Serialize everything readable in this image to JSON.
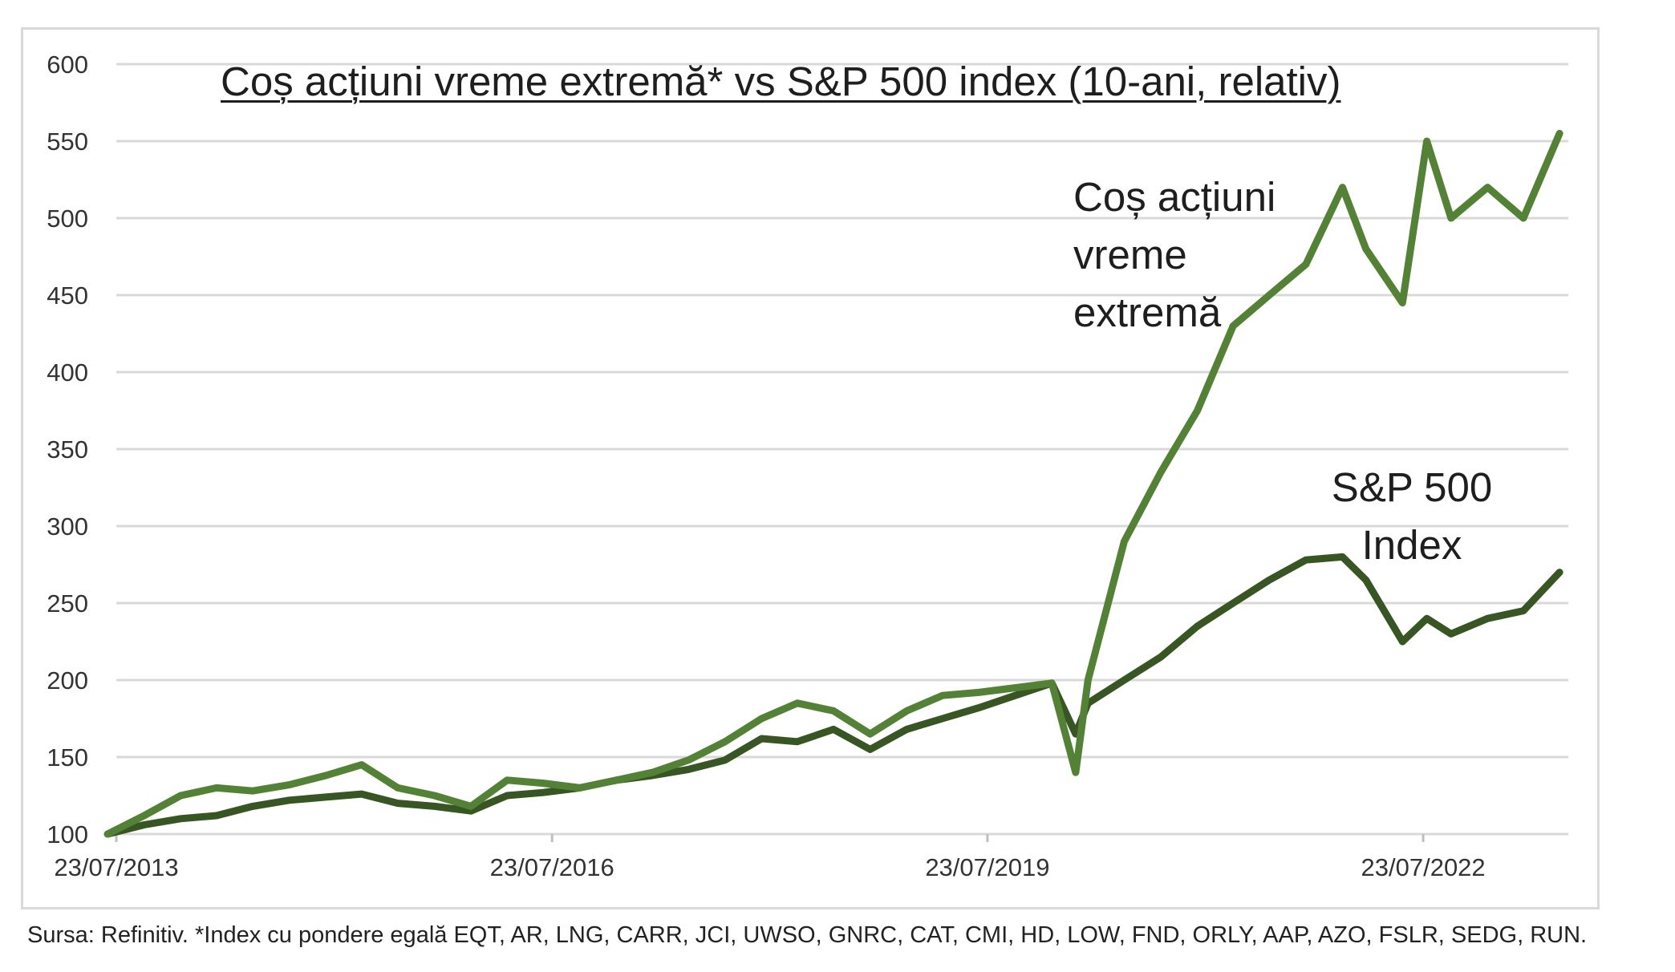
{
  "chart_data": {
    "type": "line",
    "title": "Coș acțiuni vreme extremă* vs S&P 500 index (10-ani, relativ)",
    "xlabel": "",
    "ylabel": "",
    "ylim": [
      100,
      600
    ],
    "yticks": [
      "100",
      "150",
      "200",
      "250",
      "300",
      "350",
      "400",
      "450",
      "500",
      "550",
      "600"
    ],
    "xlim": [
      "2013-07-23",
      "2023-07-23"
    ],
    "xticks": [
      "23/07/2013",
      "23/07/2016",
      "23/07/2019",
      "23/07/2022"
    ],
    "grid": true,
    "legend": "none (inline labels)",
    "series_labels": {
      "basket": "Coș acțiuni vreme extremă",
      "sp500": "S&P 500 Index"
    },
    "series": [
      {
        "key": "basket",
        "color": "#538135",
        "x": [
          "2013-07",
          "2013-10",
          "2014-01",
          "2014-04",
          "2014-07",
          "2014-10",
          "2015-01",
          "2015-04",
          "2015-07",
          "2015-10",
          "2016-01",
          "2016-04",
          "2016-07",
          "2016-10",
          "2017-01",
          "2017-04",
          "2017-07",
          "2017-10",
          "2018-01",
          "2018-04",
          "2018-07",
          "2018-10",
          "2019-01",
          "2019-04",
          "2019-07",
          "2019-10",
          "2020-01",
          "2020-03",
          "2020-04",
          "2020-07",
          "2020-10",
          "2021-01",
          "2021-04",
          "2021-07",
          "2021-10",
          "2022-01",
          "2022-03",
          "2022-06",
          "2022-08",
          "2022-10",
          "2023-01",
          "2023-04",
          "2023-07"
        ],
        "values": [
          100,
          112,
          125,
          130,
          128,
          132,
          138,
          145,
          130,
          125,
          118,
          135,
          133,
          130,
          135,
          140,
          148,
          160,
          175,
          185,
          180,
          165,
          180,
          190,
          192,
          195,
          198,
          140,
          200,
          290,
          335,
          375,
          430,
          450,
          470,
          520,
          480,
          445,
          550,
          500,
          520,
          500,
          555
        ]
      },
      {
        "key": "sp500",
        "color": "#375623",
        "x": [
          "2013-07",
          "2013-10",
          "2014-01",
          "2014-04",
          "2014-07",
          "2014-10",
          "2015-01",
          "2015-04",
          "2015-07",
          "2015-10",
          "2016-01",
          "2016-04",
          "2016-07",
          "2016-10",
          "2017-01",
          "2017-04",
          "2017-07",
          "2017-10",
          "2018-01",
          "2018-04",
          "2018-07",
          "2018-10",
          "2019-01",
          "2019-04",
          "2019-07",
          "2019-10",
          "2020-01",
          "2020-03",
          "2020-04",
          "2020-07",
          "2020-10",
          "2021-01",
          "2021-04",
          "2021-07",
          "2021-10",
          "2022-01",
          "2022-03",
          "2022-06",
          "2022-08",
          "2022-10",
          "2023-01",
          "2023-04",
          "2023-07"
        ],
        "values": [
          100,
          106,
          110,
          112,
          118,
          122,
          124,
          126,
          120,
          118,
          115,
          125,
          127,
          130,
          135,
          138,
          142,
          148,
          162,
          160,
          168,
          155,
          168,
          175,
          182,
          190,
          198,
          165,
          185,
          200,
          215,
          235,
          250,
          265,
          278,
          280,
          265,
          225,
          240,
          230,
          240,
          245,
          270
        ]
      }
    ]
  },
  "footer": {
    "source": "Sursa: Refinitiv. *Index cu pondere egală EQT, AR, LNG, CARR, JCI, UWSO, GNRC, CAT, CMI, HD, LOW, FND, ORLY, AAP, AZO, FSLR, SEDG, RUN."
  }
}
